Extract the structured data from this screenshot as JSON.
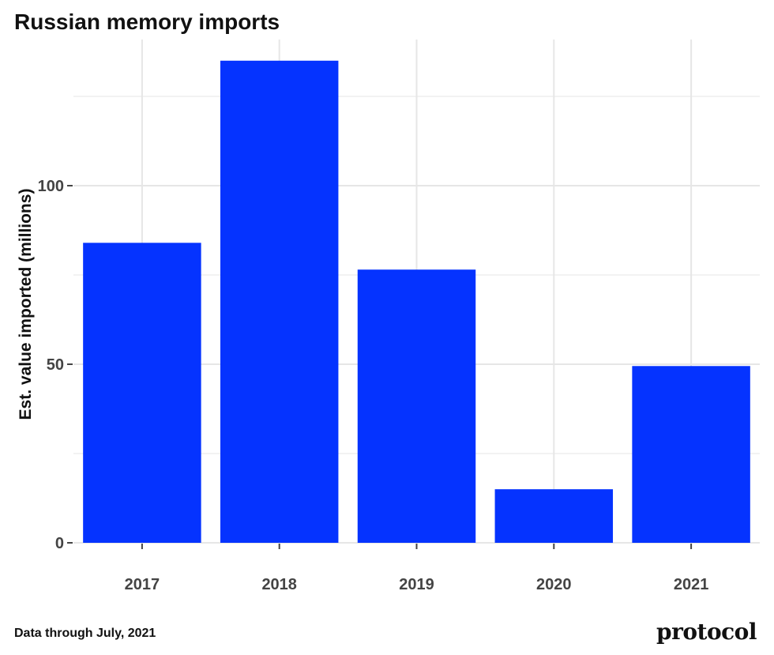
{
  "title": "Russian memory imports",
  "footnote": "Data through July, 2021",
  "logo": "protocol",
  "colors": {
    "bar": "#0533ff",
    "grid": "#e6e6e6",
    "text": "#111111",
    "tick": "#444444"
  },
  "chart_data": {
    "type": "bar",
    "title": "Russian memory imports",
    "xlabel": "",
    "ylabel": "Est. value imported (millions)",
    "categories": [
      "2017",
      "2018",
      "2019",
      "2020",
      "2021"
    ],
    "values": [
      84,
      135,
      76.5,
      15,
      49.5
    ],
    "yticks": [
      0,
      50,
      100
    ],
    "ylim": [
      0,
      135
    ],
    "grid": true
  }
}
